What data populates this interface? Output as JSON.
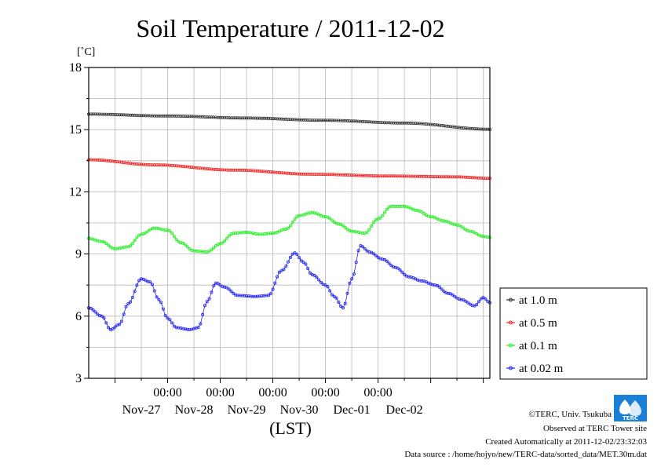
{
  "chart_data": {
    "type": "line",
    "title": "Soil Temperature / 2011-12-02",
    "y_unit": "[˚C]",
    "xlabel": "(LST)",
    "ylim": [
      3,
      18
    ],
    "y_ticks": [
      "3",
      "6",
      "9",
      "12",
      "15",
      "18"
    ],
    "x_range_hours": [
      -36,
      147
    ],
    "x_time_labels": [
      "00:00",
      "00:00",
      "00:00",
      "00:00",
      "00:00"
    ],
    "x_date_labels": [
      "Nov-27",
      "Nov-28",
      "Nov-29",
      "Nov-30",
      "Dec-01",
      "Dec-02"
    ],
    "legend_position": "outside-right",
    "grid": true,
    "series": [
      {
        "name": "at 1.0 m",
        "color": "#333333",
        "points": [
          [
            -36,
            15.75
          ],
          [
            0,
            15.66
          ],
          [
            36,
            15.56
          ],
          [
            72,
            15.45
          ],
          [
            108,
            15.32
          ],
          [
            147,
            15.02
          ]
        ]
      },
      {
        "name": "at 0.5 m",
        "color": "#ee2222",
        "points": [
          [
            -36,
            13.55
          ],
          [
            -6,
            13.3
          ],
          [
            30,
            13.05
          ],
          [
            66,
            12.85
          ],
          [
            102,
            12.76
          ],
          [
            132,
            12.72
          ],
          [
            147,
            12.65
          ]
        ]
      },
      {
        "name": "at 0.1 m",
        "color": "#22ee22",
        "points": [
          [
            -36,
            9.75
          ],
          [
            -30,
            9.6
          ],
          [
            -24,
            9.25
          ],
          [
            -18,
            9.35
          ],
          [
            -12,
            9.95
          ],
          [
            -6,
            10.25
          ],
          [
            0,
            10.15
          ],
          [
            6,
            9.55
          ],
          [
            12,
            9.15
          ],
          [
            18,
            9.1
          ],
          [
            24,
            9.5
          ],
          [
            30,
            10.0
          ],
          [
            36,
            10.05
          ],
          [
            42,
            9.95
          ],
          [
            48,
            10.0
          ],
          [
            54,
            10.2
          ],
          [
            60,
            10.85
          ],
          [
            66,
            11.0
          ],
          [
            72,
            10.8
          ],
          [
            78,
            10.45
          ],
          [
            84,
            10.1
          ],
          [
            90,
            10.0
          ],
          [
            96,
            10.7
          ],
          [
            102,
            11.3
          ],
          [
            108,
            11.3
          ],
          [
            114,
            11.1
          ],
          [
            120,
            10.8
          ],
          [
            126,
            10.6
          ],
          [
            132,
            10.4
          ],
          [
            138,
            10.1
          ],
          [
            144,
            9.85
          ],
          [
            147,
            9.8
          ]
        ]
      },
      {
        "name": "at 0.02 m",
        "color": "#2222ee",
        "points": [
          [
            -36,
            6.4
          ],
          [
            -30,
            6.0
          ],
          [
            -26,
            5.35
          ],
          [
            -22,
            5.6
          ],
          [
            -18,
            6.6
          ],
          [
            -12,
            7.8
          ],
          [
            -8,
            7.65
          ],
          [
            -4,
            6.8
          ],
          [
            0,
            5.9
          ],
          [
            4,
            5.45
          ],
          [
            10,
            5.35
          ],
          [
            14,
            5.45
          ],
          [
            18,
            6.7
          ],
          [
            22,
            7.6
          ],
          [
            26,
            7.4
          ],
          [
            32,
            7.0
          ],
          [
            40,
            6.95
          ],
          [
            46,
            7.0
          ],
          [
            52,
            8.2
          ],
          [
            58,
            9.05
          ],
          [
            62,
            8.6
          ],
          [
            66,
            8.0
          ],
          [
            72,
            7.5
          ],
          [
            76,
            6.95
          ],
          [
            80,
            6.4
          ],
          [
            84,
            7.8
          ],
          [
            88,
            9.4
          ],
          [
            92,
            9.1
          ],
          [
            98,
            8.75
          ],
          [
            104,
            8.35
          ],
          [
            110,
            7.9
          ],
          [
            116,
            7.7
          ],
          [
            122,
            7.5
          ],
          [
            128,
            7.1
          ],
          [
            134,
            6.8
          ],
          [
            140,
            6.5
          ],
          [
            144,
            6.9
          ],
          [
            147,
            6.65
          ]
        ]
      }
    ]
  },
  "footer": {
    "copyright": "©TERC, Univ. Tsukuba",
    "observed": "Observed at TERC Tower site",
    "created": "Created Automatically at 2011-12-02/23:32:03",
    "source": "Data source : /home/hojyo/new/TERC-data/sorted_data/MET.30m.dat"
  },
  "logo": {
    "text": "TERC"
  }
}
